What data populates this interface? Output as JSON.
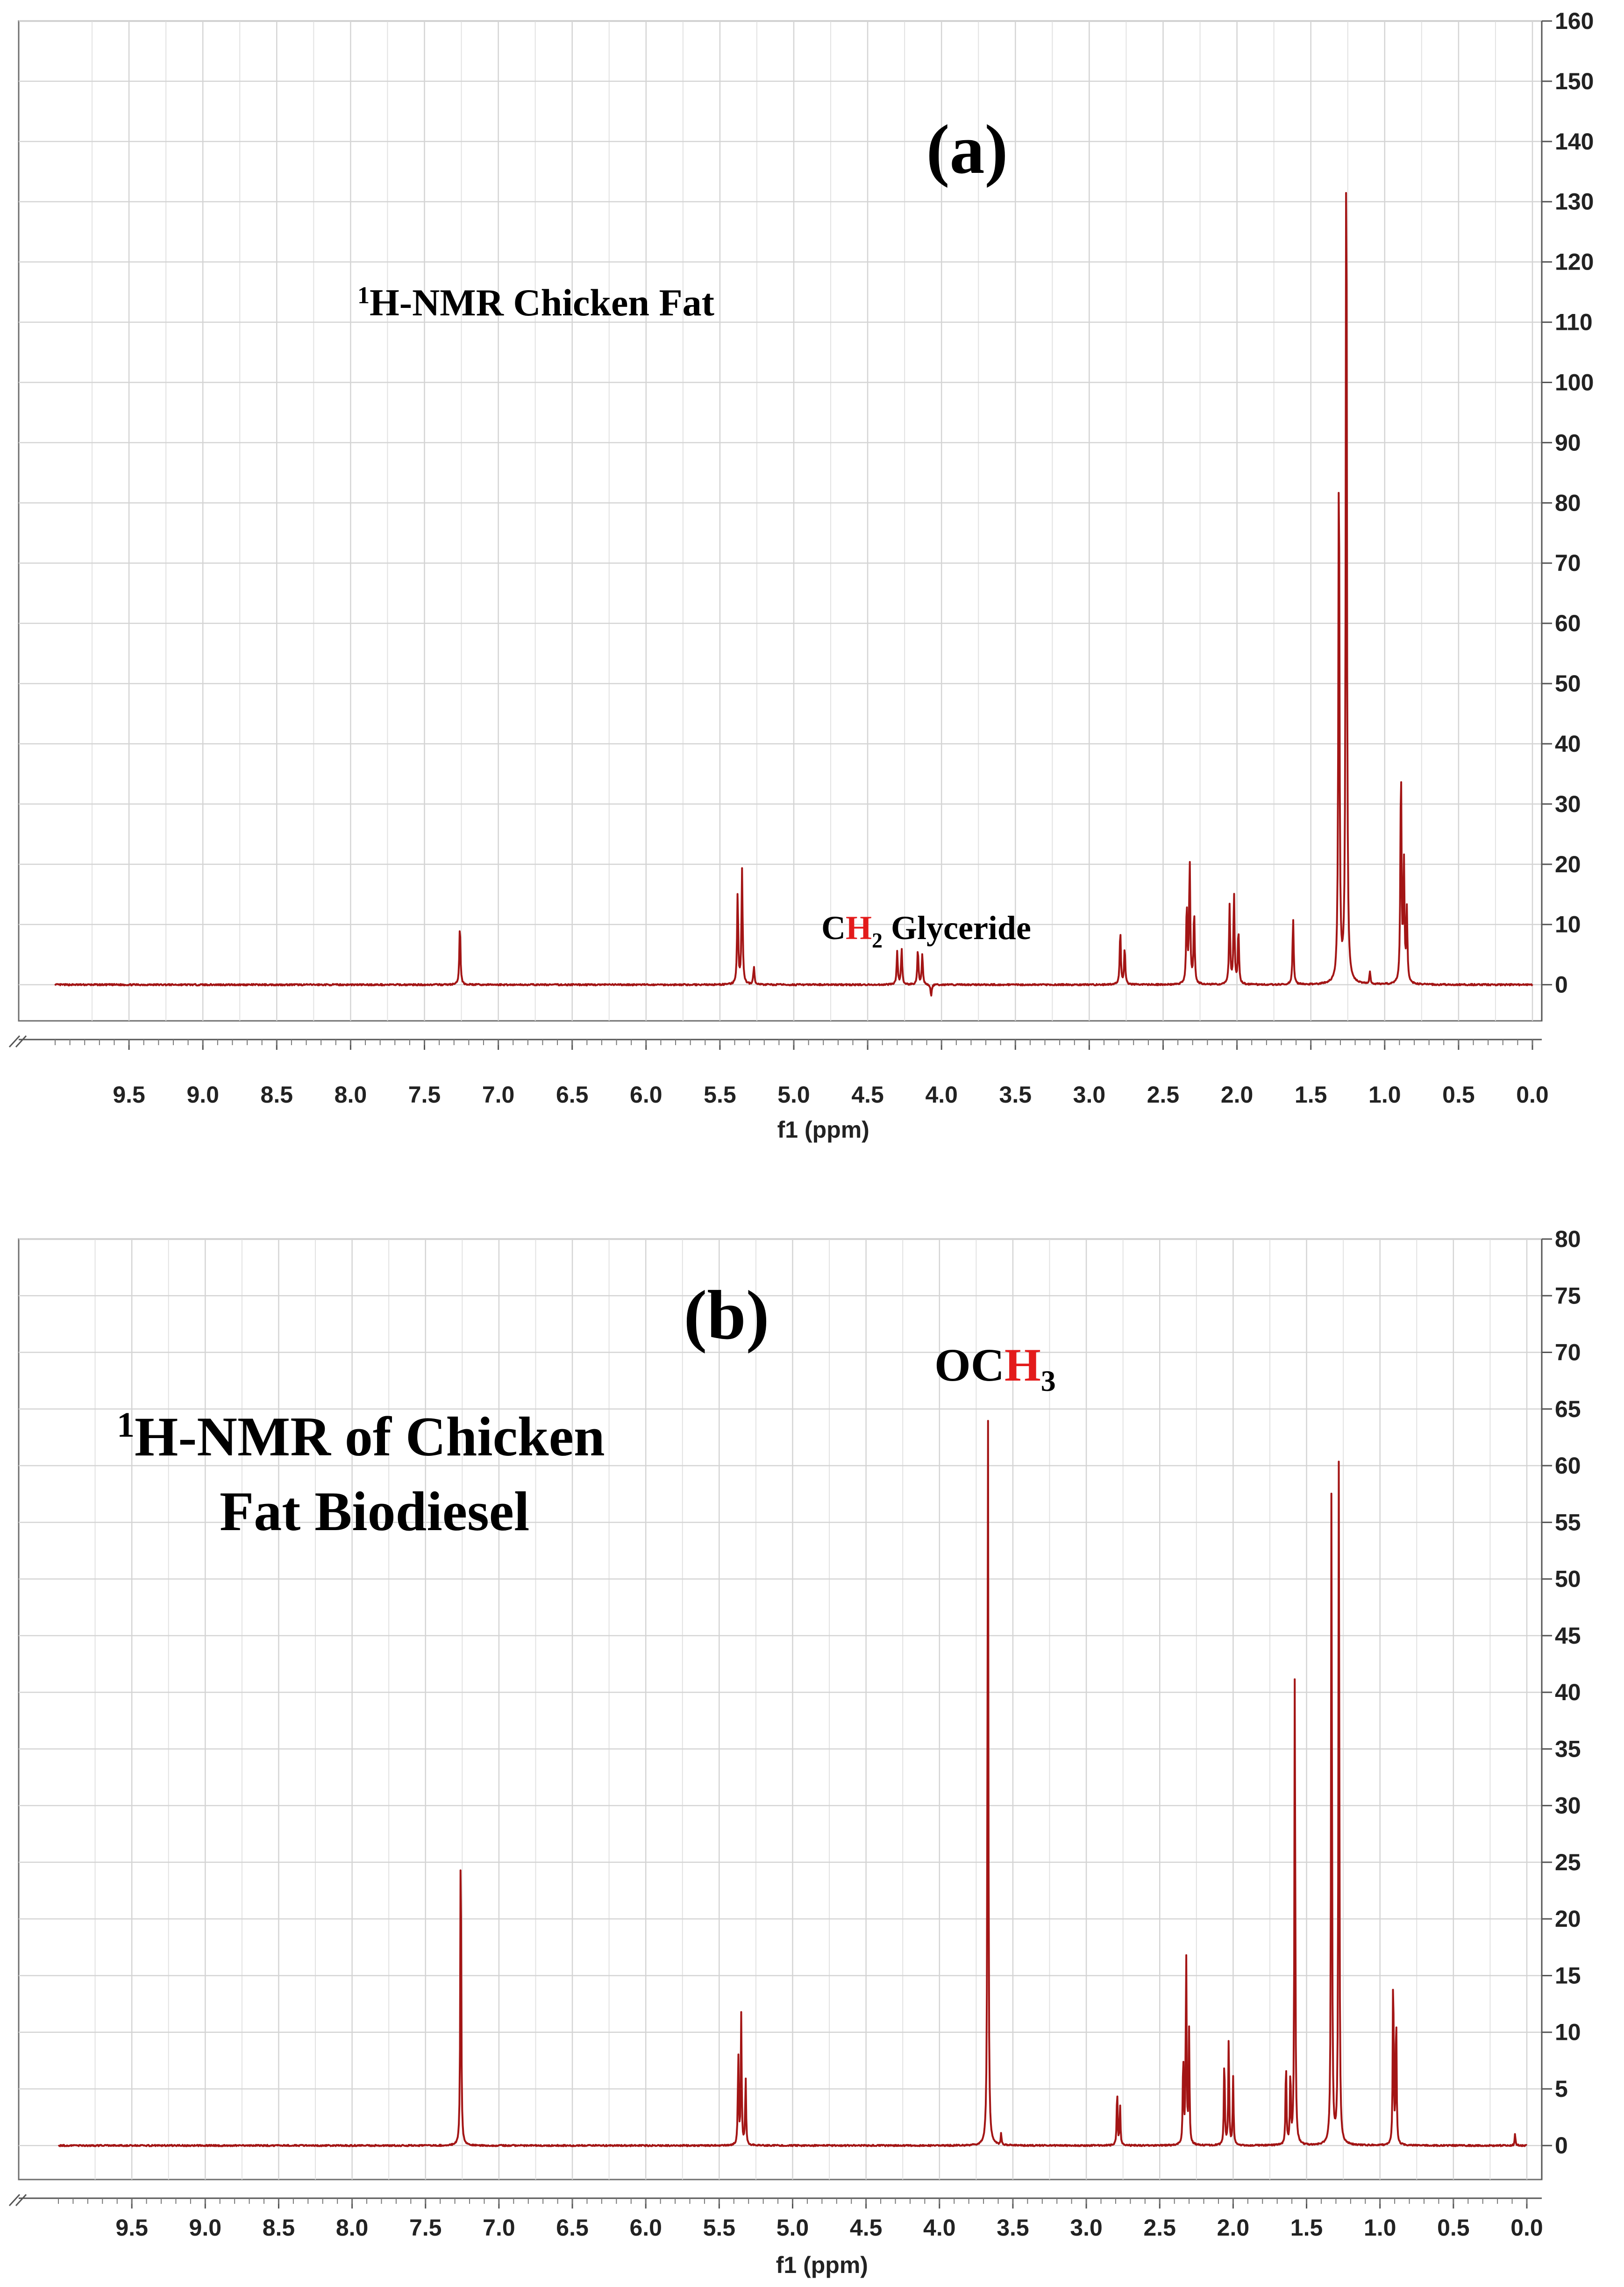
{
  "chart_data": [
    {
      "type": "line",
      "panel_label": "(a)",
      "title": {
        "sup": "1",
        "text": "H-NMR Chicken Fat"
      },
      "annotation": {
        "pre": "C",
        "red": "H",
        "sub": "2",
        "post": " Glyceride"
      },
      "xlabel": "f1 (ppm)",
      "xlim": [
        10.0,
        0.0
      ],
      "ylim": [
        -6,
        160
      ],
      "x_ticks": [
        "9.5",
        "9.0",
        "8.5",
        "8.0",
        "7.5",
        "7.0",
        "6.5",
        "6.0",
        "5.5",
        "5.0",
        "4.5",
        "4.0",
        "3.5",
        "3.0",
        "2.5",
        "2.0",
        "1.5",
        "1.0",
        "0.5",
        "0.0"
      ],
      "y_ticks": [
        "0",
        "10",
        "20",
        "30",
        "40",
        "50",
        "60",
        "70",
        "80",
        "90",
        "100",
        "110",
        "120",
        "130",
        "140",
        "150",
        "160"
      ],
      "grid": true,
      "line_color": "#a31515",
      "peaks": [
        {
          "x": 7.26,
          "y": 10
        },
        {
          "x": 5.38,
          "y": 15
        },
        {
          "x": 5.35,
          "y": 19
        },
        {
          "x": 5.27,
          "y": 3
        },
        {
          "x": 4.3,
          "y": 5.5
        },
        {
          "x": 4.27,
          "y": 6
        },
        {
          "x": 4.16,
          "y": 6
        },
        {
          "x": 4.13,
          "y": 5
        },
        {
          "x": 4.07,
          "y": -2
        },
        {
          "x": 2.79,
          "y": 9
        },
        {
          "x": 2.76,
          "y": 6
        },
        {
          "x": 2.34,
          "y": 13
        },
        {
          "x": 2.32,
          "y": 20
        },
        {
          "x": 2.29,
          "y": 12
        },
        {
          "x": 2.05,
          "y": 13
        },
        {
          "x": 2.02,
          "y": 15
        },
        {
          "x": 1.99,
          "y": 9
        },
        {
          "x": 1.62,
          "y": 11
        },
        {
          "x": 1.31,
          "y": 90
        },
        {
          "x": 1.26,
          "y": 146
        },
        {
          "x": 1.1,
          "y": 2
        },
        {
          "x": 0.89,
          "y": 36
        },
        {
          "x": 0.87,
          "y": 20
        },
        {
          "x": 0.85,
          "y": 12
        }
      ]
    },
    {
      "type": "line",
      "panel_label": "(b)",
      "title": {
        "sup": "1",
        "line1": "H-NMR of Chicken",
        "line2": "Fat Biodiesel"
      },
      "annotation": {
        "pre": "OC",
        "red": "H",
        "sub": "3",
        "post": ""
      },
      "xlabel": "f1 (ppm)",
      "xlim": [
        10.0,
        0.0
      ],
      "ylim": [
        -3,
        80
      ],
      "x_ticks": [
        "9.5",
        "9.0",
        "8.5",
        "8.0",
        "7.5",
        "7.0",
        "6.5",
        "6.0",
        "5.5",
        "5.0",
        "4.5",
        "4.0",
        "3.5",
        "3.0",
        "2.5",
        "2.0",
        "1.5",
        "1.0",
        "0.5",
        "0.0"
      ],
      "y_ticks": [
        "0",
        "5",
        "10",
        "15",
        "20",
        "25",
        "30",
        "35",
        "40",
        "45",
        "50",
        "55",
        "60",
        "65",
        "70",
        "75",
        "80"
      ],
      "grid": true,
      "line_color": "#a31515",
      "peaks": [
        {
          "x": 7.26,
          "y": 29
        },
        {
          "x": 5.37,
          "y": 8
        },
        {
          "x": 5.35,
          "y": 11.5
        },
        {
          "x": 5.32,
          "y": 6
        },
        {
          "x": 3.67,
          "y": 67
        },
        {
          "x": 3.58,
          "y": 1
        },
        {
          "x": 2.79,
          "y": 5
        },
        {
          "x": 2.77,
          "y": 3.5
        },
        {
          "x": 2.34,
          "y": 8
        },
        {
          "x": 2.32,
          "y": 17
        },
        {
          "x": 2.3,
          "y": 10
        },
        {
          "x": 2.06,
          "y": 8
        },
        {
          "x": 2.03,
          "y": 9.5
        },
        {
          "x": 2.0,
          "y": 6
        },
        {
          "x": 1.64,
          "y": 7.5
        },
        {
          "x": 1.61,
          "y": 6.5
        },
        {
          "x": 1.58,
          "y": 43
        },
        {
          "x": 1.33,
          "y": 60
        },
        {
          "x": 1.28,
          "y": 63
        },
        {
          "x": 0.91,
          "y": 16
        },
        {
          "x": 0.89,
          "y": 12
        },
        {
          "x": 0.08,
          "y": 1
        }
      ]
    }
  ]
}
